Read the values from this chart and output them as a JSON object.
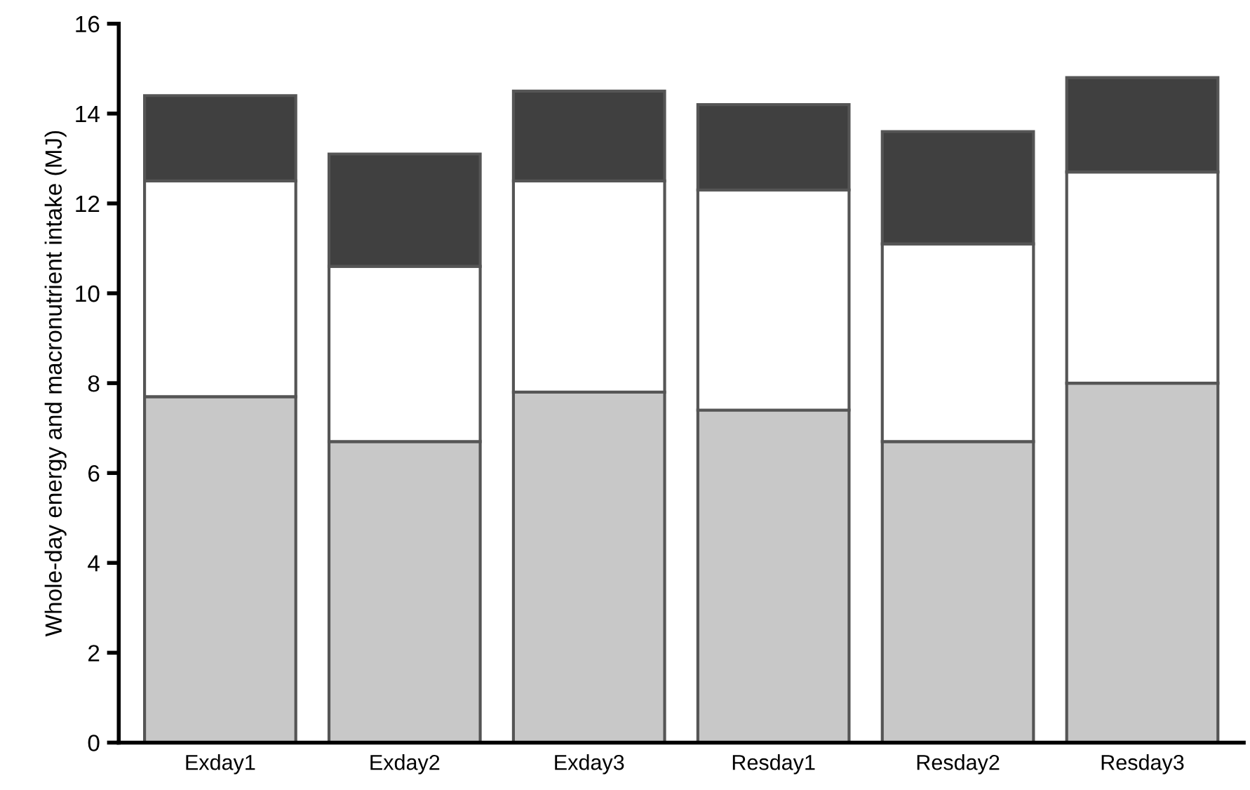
{
  "chart_data": {
    "type": "bar",
    "stacked": true,
    "ylabel": "Whole-day energy and macronutrient intake (MJ)",
    "categories": [
      "Exday1",
      "Exday2",
      "Exday3",
      "Resday1",
      "Resday2",
      "Resday3"
    ],
    "series": [
      {
        "color": "#c8c8c8",
        "values": [
          7.7,
          6.7,
          7.8,
          7.4,
          6.7,
          8.0
        ]
      },
      {
        "color": "#ffffff",
        "values": [
          4.8,
          3.9,
          4.7,
          4.9,
          4.4,
          4.7
        ]
      },
      {
        "color": "#404040",
        "values": [
          1.9,
          2.5,
          2.0,
          1.9,
          2.5,
          2.1
        ]
      }
    ],
    "ylim": [
      0,
      16
    ],
    "yticks": [
      0,
      2,
      4,
      6,
      8,
      10,
      12,
      14,
      16
    ],
    "grid": false
  }
}
